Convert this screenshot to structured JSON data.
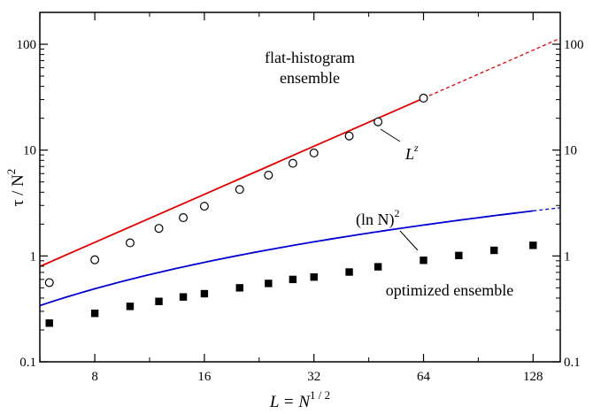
{
  "chart_data": {
    "type": "scatter",
    "x_scale": "log2",
    "y_scale": "log",
    "xlim": [
      5.65,
      152
    ],
    "ylim": [
      0.1,
      200
    ],
    "x_ticks": [
      8,
      16,
      32,
      64,
      128
    ],
    "x_tick_labels": [
      "8",
      "16",
      "32",
      "64",
      "128"
    ],
    "y_ticks": [
      0.1,
      1,
      10,
      100
    ],
    "y_tick_labels": [
      "0.1",
      "1",
      "10",
      "100"
    ],
    "xlabel": {
      "base": "L = N",
      "sup": "1 / 2"
    },
    "ylabel": {
      "base": "τ / N",
      "sup": "2"
    },
    "grid": false,
    "series": [
      {
        "name": "flat-histogram ensemble",
        "marker": "open-circle",
        "color": "#e00000",
        "x": [
          6,
          8,
          10,
          12,
          14,
          16,
          20,
          24,
          28,
          32,
          40,
          48,
          64
        ],
        "y": [
          0.56,
          0.92,
          1.33,
          1.82,
          2.3,
          2.95,
          4.25,
          5.8,
          7.5,
          9.4,
          13.6,
          18.5,
          31.0
        ],
        "fit": {
          "kind": "power",
          "prefactor": 0.0584,
          "exponent": 1.508,
          "solid_to": 64,
          "dashed_to": 152
        }
      },
      {
        "name": "optimized ensemble",
        "marker": "filled-square",
        "color": "#0000d0",
        "x": [
          6,
          8,
          10,
          12,
          14,
          16,
          20,
          24,
          28,
          32,
          40,
          48,
          64,
          80,
          100,
          128
        ],
        "y": [
          0.232,
          0.287,
          0.334,
          0.372,
          0.41,
          0.44,
          0.5,
          0.55,
          0.6,
          0.632,
          0.705,
          0.79,
          0.91,
          1.01,
          1.13,
          1.26
        ],
        "fit": {
          "kind": "log-squared",
          "prefactor": 0.0283,
          "solid_to": 128,
          "dashed_to": 152
        }
      }
    ],
    "annotations": [
      {
        "text": "flat-histogram",
        "target": "flat-histogram ensemble"
      },
      {
        "text": "ensemble",
        "target": "flat-histogram ensemble"
      },
      {
        "text": "optimized ensemble",
        "target": "optimized ensemble"
      },
      {
        "text": "L",
        "sup": "z",
        "target": "fit-red"
      },
      {
        "text": "(ln N)",
        "sup": "2",
        "target": "fit-blue"
      }
    ]
  }
}
